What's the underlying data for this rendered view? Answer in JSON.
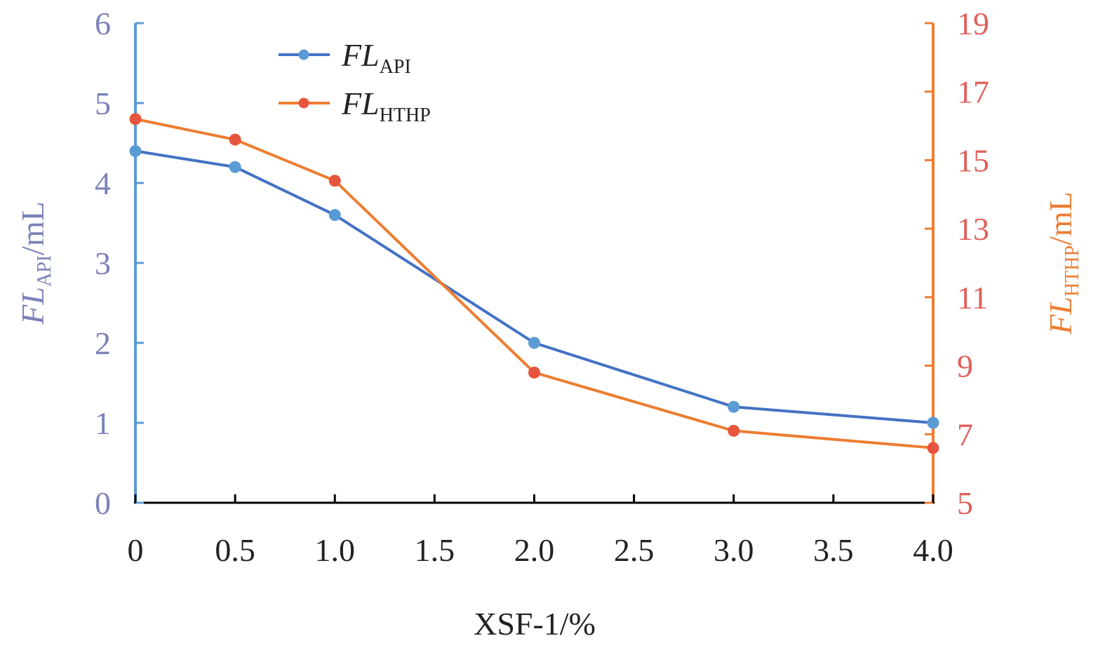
{
  "chart_data": {
    "type": "line",
    "x": [
      0,
      0.5,
      1.0,
      2.0,
      3.0,
      4.0
    ],
    "x_ticks": [
      "0",
      "0.5",
      "1.0",
      "1.5",
      "2.0",
      "2.5",
      "3.0",
      "3.5",
      "4.0"
    ],
    "xlim": [
      0,
      4
    ],
    "xlabel": "XSF-1/%",
    "y_left": {
      "label_main": "FL",
      "label_sub": "API",
      "label_unit": "/mL",
      "lim": [
        0,
        6
      ],
      "ticks": [
        "0",
        "1",
        "2",
        "3",
        "4",
        "5",
        "6"
      ]
    },
    "y_right": {
      "label_main": "FL",
      "label_sub": "HTHP",
      "label_unit": "/mL",
      "lim": [
        5,
        19
      ],
      "ticks": [
        "5",
        "7",
        "9",
        "11",
        "13",
        "15",
        "17",
        "19"
      ]
    },
    "series": [
      {
        "name_main": "FL",
        "name_sub": "API",
        "axis": "left",
        "color": "#5b9bd5",
        "line_color": "#4472c4",
        "values": [
          4.4,
          4.2,
          3.6,
          2.0,
          1.2,
          1.0
        ]
      },
      {
        "name_main": "FL",
        "name_sub": "HTHP",
        "axis": "right",
        "color": "#ed7d31",
        "marker_color": "#e8553f",
        "values": [
          16.2,
          15.6,
          14.4,
          8.8,
          7.1,
          6.6
        ]
      }
    ],
    "legend": "top-left",
    "grid": false,
    "colors": {
      "left_axis": "#5b9bd5",
      "right_axis": "#ed7d31",
      "left_ticks": "#7b82b8",
      "right_ticks": "#e0605a"
    }
  }
}
